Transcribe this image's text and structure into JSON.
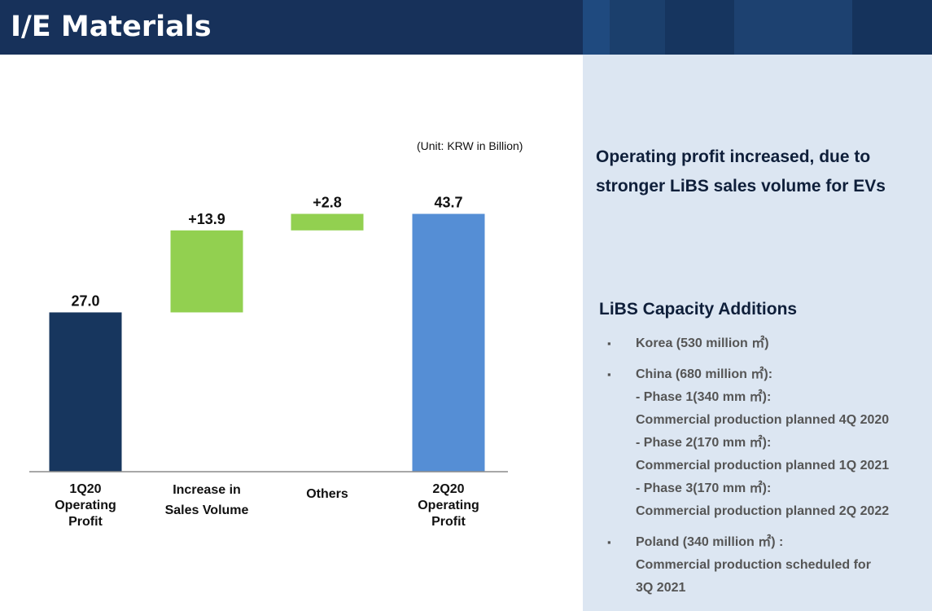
{
  "header": {
    "title": "I/E Materials"
  },
  "colors": {
    "header_bg": "#17315a",
    "panel_bg": "#dce6f2",
    "bar_start": "#17365e",
    "bar_increase": "#92d050",
    "bar_end": "#558ed5"
  },
  "unit_note": "(Unit: KRW in Billion)",
  "chart_data": {
    "type": "bar",
    "subtype": "waterfall",
    "categories": [
      [
        "1Q20",
        "Operating",
        "Profit"
      ],
      [
        "Increase in",
        "Sales Volume"
      ],
      [
        "Others"
      ],
      [
        "2Q20",
        "Operating",
        "Profit"
      ]
    ],
    "bars": [
      {
        "kind": "total",
        "base": 0,
        "value": 27.0,
        "label": "27.0"
      },
      {
        "kind": "increase",
        "base": 27.0,
        "value": 13.9,
        "label": "+13.9"
      },
      {
        "kind": "increase",
        "base": 40.9,
        "value": 2.8,
        "label": "+2.8"
      },
      {
        "kind": "total",
        "base": 0,
        "value": 43.7,
        "label": "43.7"
      }
    ],
    "ylim": [
      0,
      47.5
    ],
    "grid": false,
    "legend": "none"
  },
  "panel": {
    "headline": [
      "Operating profit increased, due to",
      "stronger LiBS sales volume for EVs"
    ],
    "section_title": "LiBS Capacity Additions",
    "bullet_mark": "▪",
    "bullets": [
      {
        "lines": [
          "Korea (530 million ㎡)"
        ]
      },
      {
        "lines": [
          "China (680 million ㎡):",
          "- Phase 1(340 mm ㎡):",
          "Commercial production planned 4Q 2020",
          "- Phase 2(170 mm ㎡):",
          "Commercial production planned 1Q 2021",
          "- Phase 3(170 mm ㎡):",
          "Commercial production planned 2Q 2022"
        ]
      },
      {
        "lines": [
          "Poland (340 million ㎡) :",
          "Commercial production scheduled for",
          "3Q 2021"
        ]
      }
    ]
  }
}
